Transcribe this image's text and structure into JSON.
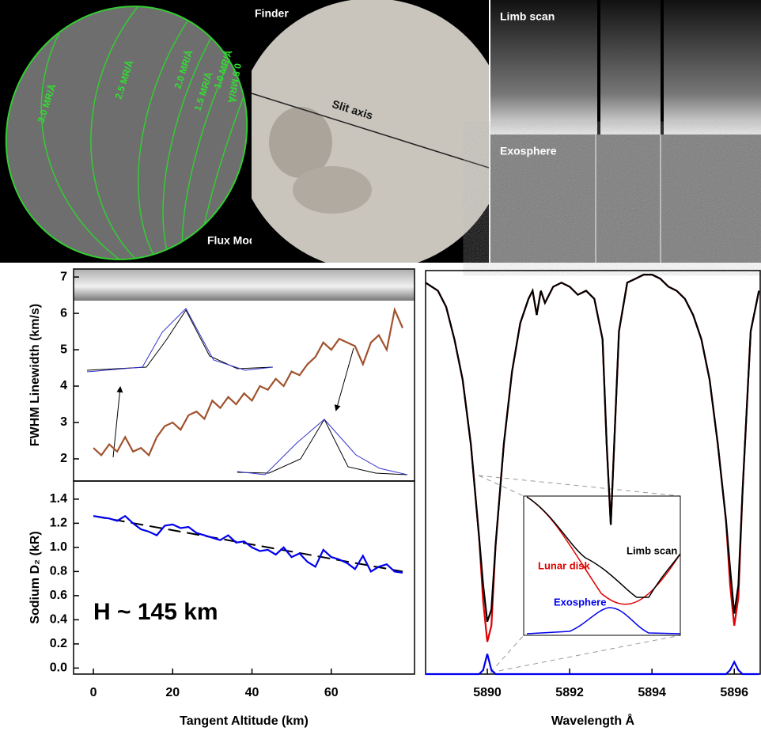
{
  "images": {
    "flux_model": {
      "label": "Flux Model",
      "contours": [
        "3.0 MR/Å",
        "2.5 MR/Å",
        "2.0 MR/Å",
        "1.5 MR/Å",
        "1.0 MR/Å",
        "0.5 MR/Å"
      ]
    },
    "finder": {
      "label": "Finder",
      "slit": "Slit axis"
    },
    "limb_scan": {
      "label": "Limb scan"
    },
    "exosphere": {
      "label": "Exosphere"
    }
  },
  "chart_data": [
    {
      "type": "line",
      "ylabel": "FWHM Linewidth (km/s)",
      "xlim": [
        -5,
        81
      ],
      "ylim": [
        1.39,
        7.22
      ],
      "yticks": [
        2,
        3,
        4,
        5,
        6,
        7
      ],
      "x": [
        0,
        2,
        4,
        6,
        8,
        10,
        12,
        14,
        16,
        18,
        20,
        22,
        24,
        26,
        28,
        30,
        32,
        34,
        36,
        38,
        40,
        42,
        44,
        46,
        48,
        50,
        52,
        54,
        56,
        58,
        60,
        62,
        64,
        66,
        68,
        70,
        72,
        74,
        76,
        78
      ],
      "series": [
        {
          "color": "#a0522d",
          "values": [
            2.3,
            2.1,
            2.4,
            2.2,
            2.6,
            2.2,
            2.3,
            2.1,
            2.6,
            2.9,
            3.0,
            2.8,
            3.2,
            3.3,
            3.1,
            3.6,
            3.4,
            3.7,
            3.5,
            3.8,
            3.6,
            4.0,
            3.9,
            4.2,
            4.0,
            4.4,
            4.3,
            4.6,
            4.8,
            5.2,
            5.0,
            5.3,
            5.2,
            5.1,
            4.6,
            5.2,
            5.4,
            5.0,
            6.1,
            5.6
          ]
        }
      ]
    },
    {
      "type": "line",
      "ylabel": "Sodium D₂ (kR)",
      "xlabel": "Tangent Altitude (km)",
      "annotation": "H ~ 145 km",
      "xlim": [
        -5,
        81
      ],
      "xticks": [
        0,
        20,
        40,
        60
      ],
      "ylim": [
        -0.05,
        1.55
      ],
      "yticks": [
        {
          "value": 0,
          "label": "0.0"
        },
        0.2,
        0.4,
        0.6,
        0.8,
        {
          "value": 1,
          "label": "1.0"
        },
        1.2,
        1.4
      ],
      "x": [
        0,
        2,
        4,
        6,
        8,
        10,
        12,
        14,
        16,
        18,
        20,
        22,
        24,
        26,
        28,
        30,
        32,
        34,
        36,
        38,
        40,
        42,
        44,
        46,
        48,
        50,
        52,
        54,
        56,
        58,
        60,
        62,
        64,
        66,
        68,
        70,
        72,
        74,
        76,
        78
      ],
      "series": [
        {
          "color": "#0000ee",
          "values": [
            1.26,
            1.25,
            1.24,
            1.22,
            1.26,
            1.2,
            1.15,
            1.13,
            1.1,
            1.18,
            1.19,
            1.16,
            1.17,
            1.12,
            1.1,
            1.08,
            1.06,
            1.1,
            1.04,
            1.05,
            1.0,
            0.97,
            0.98,
            0.94,
            1.0,
            0.92,
            0.95,
            0.88,
            0.84,
            0.98,
            0.92,
            0.9,
            0.87,
            0.82,
            0.93,
            0.8,
            0.84,
            0.86,
            0.8,
            0.79
          ]
        }
      ],
      "fit": {
        "color": "#000000",
        "style": "dashed",
        "x": [
          0,
          78
        ],
        "values": [
          1.26,
          0.8
        ]
      }
    },
    {
      "type": "line",
      "xlabel": "Wavelength Å",
      "xlim": [
        5888.5,
        5896.63
      ],
      "ylim": [
        0,
        1
      ],
      "xticks": [
        5890,
        5892,
        5894,
        5896
      ],
      "x": [
        5888.5,
        5888.8,
        5889.0,
        5889.2,
        5889.4,
        5889.6,
        5889.8,
        5889.9,
        5890.0,
        5890.1,
        5890.2,
        5890.4,
        5890.6,
        5890.8,
        5891.0,
        5891.1,
        5891.2,
        5891.3,
        5891.4,
        5891.6,
        5891.8,
        5892.0,
        5892.2,
        5892.4,
        5892.6,
        5892.8,
        5892.9,
        5893.0,
        5893.1,
        5893.2,
        5893.4,
        5893.6,
        5893.8,
        5894.0,
        5894.2,
        5894.4,
        5894.6,
        5894.8,
        5895.0,
        5895.2,
        5895.4,
        5895.6,
        5895.8,
        5895.9,
        5896.0,
        5896.1,
        5896.2,
        5896.4,
        5896.6
      ],
      "series": [
        {
          "name": "Lunar disk",
          "color": "#e00000",
          "values": [
            0.97,
            0.95,
            0.91,
            0.83,
            0.73,
            0.57,
            0.34,
            0.18,
            0.08,
            0.12,
            0.32,
            0.57,
            0.75,
            0.87,
            0.93,
            0.95,
            0.89,
            0.95,
            0.92,
            0.96,
            0.97,
            0.96,
            0.94,
            0.95,
            0.93,
            0.83,
            0.57,
            0.37,
            0.61,
            0.85,
            0.97,
            0.98,
            0.99,
            0.99,
            0.98,
            0.96,
            0.95,
            0.93,
            0.89,
            0.83,
            0.73,
            0.57,
            0.38,
            0.22,
            0.12,
            0.19,
            0.45,
            0.85,
            0.95
          ]
        },
        {
          "name": "Limb scan",
          "color": "#000000",
          "values": [
            0.97,
            0.95,
            0.91,
            0.83,
            0.73,
            0.57,
            0.34,
            0.22,
            0.13,
            0.16,
            0.32,
            0.57,
            0.75,
            0.87,
            0.93,
            0.95,
            0.89,
            0.95,
            0.92,
            0.96,
            0.97,
            0.96,
            0.94,
            0.95,
            0.93,
            0.83,
            0.57,
            0.37,
            0.61,
            0.85,
            0.97,
            0.98,
            0.99,
            0.99,
            0.98,
            0.96,
            0.95,
            0.93,
            0.89,
            0.83,
            0.73,
            0.57,
            0.38,
            0.26,
            0.15,
            0.22,
            0.45,
            0.85,
            0.95
          ]
        },
        {
          "name": "Exosphere",
          "color": "#0000ee",
          "values": [
            0,
            0,
            0,
            0,
            0,
            0,
            0,
            0.01,
            0.05,
            0.01,
            0,
            0,
            0,
            0,
            0,
            0,
            0,
            0,
            0,
            0,
            0,
            0,
            0,
            0,
            0,
            0,
            0,
            0,
            0,
            0,
            0,
            0,
            0,
            0,
            0,
            0,
            0,
            0,
            0,
            0,
            0,
            0,
            0,
            0.01,
            0.03,
            0.01,
            0,
            0,
            0
          ]
        }
      ]
    }
  ]
}
